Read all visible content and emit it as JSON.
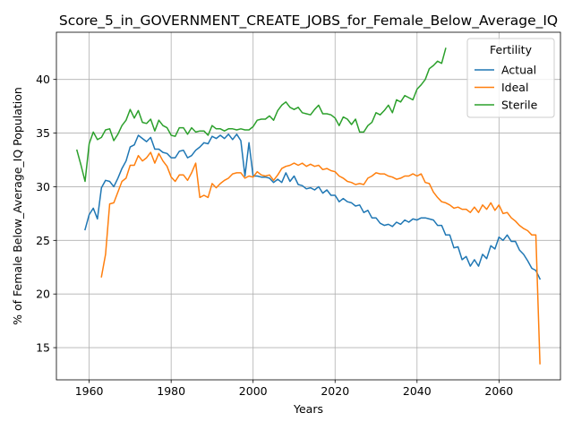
{
  "chart_data": {
    "type": "line",
    "title": "Score_5_in_GOVERNMENT_CREATE_JOBS_for_Female_Below_Average_IQ",
    "xlabel": "Years",
    "ylabel": "% of Female Below_Average_IQ Population",
    "xlim": [
      1952,
      2075
    ],
    "ylim": [
      12,
      44.4
    ],
    "xticks": [
      1960,
      1980,
      2000,
      2020,
      2040,
      2060
    ],
    "yticks": [
      15,
      20,
      25,
      30,
      35,
      40
    ],
    "grid": true,
    "legend": {
      "title": "Fertility",
      "position": "top-right"
    },
    "series": [
      {
        "name": "Actual",
        "color": "#1f77b4",
        "points": [
          [
            1959,
            26.0
          ],
          [
            1960,
            27.4
          ],
          [
            1961,
            28.0
          ],
          [
            1962,
            27.0
          ],
          [
            1963,
            29.9
          ],
          [
            1964,
            30.6
          ],
          [
            1965,
            30.5
          ],
          [
            1966,
            30.0
          ],
          [
            1967,
            30.8
          ],
          [
            1968,
            31.7
          ],
          [
            1969,
            32.4
          ],
          [
            1970,
            33.7
          ],
          [
            1971,
            33.9
          ],
          [
            1972,
            34.8
          ],
          [
            1973,
            34.5
          ],
          [
            1974,
            34.2
          ],
          [
            1975,
            34.6
          ],
          [
            1976,
            33.5
          ],
          [
            1977,
            33.5
          ],
          [
            1978,
            33.2
          ],
          [
            1979,
            33.1
          ],
          [
            1980,
            32.7
          ],
          [
            1981,
            32.7
          ],
          [
            1982,
            33.3
          ],
          [
            1983,
            33.4
          ],
          [
            1984,
            32.7
          ],
          [
            1985,
            32.9
          ],
          [
            1986,
            33.4
          ],
          [
            1987,
            33.7
          ],
          [
            1988,
            34.1
          ],
          [
            1989,
            34.0
          ],
          [
            1990,
            34.7
          ],
          [
            1991,
            34.5
          ],
          [
            1992,
            34.8
          ],
          [
            1993,
            34.5
          ],
          [
            1994,
            34.9
          ],
          [
            1995,
            34.4
          ],
          [
            1996,
            34.9
          ],
          [
            1997,
            34.3
          ],
          [
            1998,
            31.0
          ],
          [
            1999,
            34.1
          ],
          [
            2000,
            31.0
          ],
          [
            2001,
            31.0
          ],
          [
            2002,
            30.9
          ],
          [
            2003,
            30.9
          ],
          [
            2004,
            30.8
          ],
          [
            2005,
            30.4
          ],
          [
            2006,
            30.7
          ],
          [
            2007,
            30.4
          ],
          [
            2008,
            31.3
          ],
          [
            2009,
            30.5
          ],
          [
            2010,
            31.0
          ],
          [
            2011,
            30.2
          ],
          [
            2012,
            30.1
          ],
          [
            2013,
            29.8
          ],
          [
            2014,
            29.9
          ],
          [
            2015,
            29.7
          ],
          [
            2016,
            30.0
          ],
          [
            2017,
            29.4
          ],
          [
            2018,
            29.7
          ],
          [
            2019,
            29.2
          ],
          [
            2020,
            29.2
          ],
          [
            2021,
            28.6
          ],
          [
            2022,
            28.9
          ],
          [
            2023,
            28.6
          ],
          [
            2024,
            28.5
          ],
          [
            2025,
            28.2
          ],
          [
            2026,
            28.3
          ],
          [
            2027,
            27.6
          ],
          [
            2028,
            27.8
          ],
          [
            2029,
            27.1
          ],
          [
            2030,
            27.1
          ],
          [
            2031,
            26.6
          ],
          [
            2032,
            26.4
          ],
          [
            2033,
            26.5
          ],
          [
            2034,
            26.3
          ],
          [
            2035,
            26.7
          ],
          [
            2036,
            26.5
          ],
          [
            2037,
            26.9
          ],
          [
            2038,
            26.7
          ],
          [
            2039,
            27.0
          ],
          [
            2040,
            26.9
          ],
          [
            2041,
            27.1
          ],
          [
            2042,
            27.1
          ],
          [
            2043,
            27.0
          ],
          [
            2044,
            26.9
          ],
          [
            2045,
            26.4
          ],
          [
            2046,
            26.4
          ],
          [
            2047,
            25.5
          ],
          [
            2048,
            25.5
          ],
          [
            2049,
            24.3
          ],
          [
            2050,
            24.4
          ],
          [
            2051,
            23.2
          ],
          [
            2052,
            23.5
          ],
          [
            2053,
            22.6
          ],
          [
            2054,
            23.2
          ],
          [
            2055,
            22.6
          ],
          [
            2056,
            23.7
          ],
          [
            2057,
            23.3
          ],
          [
            2058,
            24.5
          ],
          [
            2059,
            24.2
          ],
          [
            2060,
            25.3
          ],
          [
            2061,
            25.0
          ],
          [
            2062,
            25.5
          ],
          [
            2063,
            24.9
          ],
          [
            2064,
            24.9
          ],
          [
            2065,
            24.1
          ],
          [
            2066,
            23.7
          ],
          [
            2067,
            23.1
          ],
          [
            2068,
            22.4
          ],
          [
            2069,
            22.2
          ],
          [
            2070,
            21.4
          ]
        ]
      },
      {
        "name": "Ideal",
        "color": "#ff7f0e",
        "points": [
          [
            1963,
            21.6
          ],
          [
            1964,
            23.7
          ],
          [
            1965,
            28.4
          ],
          [
            1966,
            28.5
          ],
          [
            1967,
            29.5
          ],
          [
            1968,
            30.5
          ],
          [
            1969,
            30.8
          ],
          [
            1970,
            32.0
          ],
          [
            1971,
            32.0
          ],
          [
            1972,
            32.9
          ],
          [
            1973,
            32.4
          ],
          [
            1974,
            32.7
          ],
          [
            1975,
            33.2
          ],
          [
            1976,
            32.2
          ],
          [
            1977,
            33.1
          ],
          [
            1978,
            32.4
          ],
          [
            1979,
            31.9
          ],
          [
            1980,
            30.9
          ],
          [
            1981,
            30.5
          ],
          [
            1982,
            31.1
          ],
          [
            1983,
            31.1
          ],
          [
            1984,
            30.6
          ],
          [
            1985,
            31.3
          ],
          [
            1986,
            32.2
          ],
          [
            1987,
            29.0
          ],
          [
            1988,
            29.2
          ],
          [
            1989,
            29.0
          ],
          [
            1990,
            30.3
          ],
          [
            1991,
            29.9
          ],
          [
            1992,
            30.3
          ],
          [
            1993,
            30.6
          ],
          [
            1994,
            30.8
          ],
          [
            1995,
            31.2
          ],
          [
            1996,
            31.3
          ],
          [
            1997,
            31.3
          ],
          [
            1998,
            30.8
          ],
          [
            1999,
            31.0
          ],
          [
            2000,
            30.9
          ],
          [
            2001,
            31.4
          ],
          [
            2002,
            31.1
          ],
          [
            2003,
            31.0
          ],
          [
            2004,
            31.1
          ],
          [
            2005,
            30.6
          ],
          [
            2006,
            31.1
          ],
          [
            2007,
            31.7
          ],
          [
            2008,
            31.9
          ],
          [
            2009,
            32.0
          ],
          [
            2010,
            32.2
          ],
          [
            2011,
            32.0
          ],
          [
            2012,
            32.2
          ],
          [
            2013,
            31.9
          ],
          [
            2014,
            32.1
          ],
          [
            2015,
            31.9
          ],
          [
            2016,
            32.0
          ],
          [
            2017,
            31.6
          ],
          [
            2018,
            31.7
          ],
          [
            2019,
            31.5
          ],
          [
            2020,
            31.4
          ],
          [
            2021,
            31.0
          ],
          [
            2022,
            30.8
          ],
          [
            2023,
            30.5
          ],
          [
            2024,
            30.4
          ],
          [
            2025,
            30.2
          ],
          [
            2026,
            30.3
          ],
          [
            2027,
            30.2
          ],
          [
            2028,
            30.8
          ],
          [
            2029,
            31.0
          ],
          [
            2030,
            31.3
          ],
          [
            2031,
            31.2
          ],
          [
            2032,
            31.2
          ],
          [
            2033,
            31.0
          ],
          [
            2034,
            30.9
          ],
          [
            2035,
            30.7
          ],
          [
            2036,
            30.8
          ],
          [
            2037,
            31.0
          ],
          [
            2038,
            31.0
          ],
          [
            2039,
            31.2
          ],
          [
            2040,
            31.0
          ],
          [
            2041,
            31.2
          ],
          [
            2042,
            30.4
          ],
          [
            2043,
            30.3
          ],
          [
            2044,
            29.5
          ],
          [
            2045,
            29.0
          ],
          [
            2046,
            28.6
          ],
          [
            2047,
            28.5
          ],
          [
            2048,
            28.3
          ],
          [
            2049,
            28.0
          ],
          [
            2050,
            28.1
          ],
          [
            2051,
            27.9
          ],
          [
            2052,
            27.9
          ],
          [
            2053,
            27.6
          ],
          [
            2054,
            28.1
          ],
          [
            2055,
            27.6
          ],
          [
            2056,
            28.3
          ],
          [
            2057,
            27.9
          ],
          [
            2058,
            28.5
          ],
          [
            2059,
            27.8
          ],
          [
            2060,
            28.3
          ],
          [
            2061,
            27.5
          ],
          [
            2062,
            27.6
          ],
          [
            2063,
            27.1
          ],
          [
            2064,
            26.8
          ],
          [
            2065,
            26.4
          ],
          [
            2066,
            26.1
          ],
          [
            2067,
            25.9
          ],
          [
            2068,
            25.5
          ],
          [
            2069,
            25.5
          ],
          [
            2070,
            13.5
          ]
        ]
      },
      {
        "name": "Sterile",
        "color": "#2ca02c",
        "points": [
          [
            1957,
            33.4
          ],
          [
            1958,
            32.0
          ],
          [
            1959,
            30.5
          ],
          [
            1960,
            34.0
          ],
          [
            1961,
            35.1
          ],
          [
            1962,
            34.4
          ],
          [
            1963,
            34.6
          ],
          [
            1964,
            35.3
          ],
          [
            1965,
            35.4
          ],
          [
            1966,
            34.3
          ],
          [
            1967,
            34.9
          ],
          [
            1968,
            35.7
          ],
          [
            1969,
            36.2
          ],
          [
            1970,
            37.2
          ],
          [
            1971,
            36.4
          ],
          [
            1972,
            37.1
          ],
          [
            1973,
            36.0
          ],
          [
            1974,
            35.9
          ],
          [
            1975,
            36.3
          ],
          [
            1976,
            35.2
          ],
          [
            1977,
            36.2
          ],
          [
            1978,
            35.7
          ],
          [
            1979,
            35.5
          ],
          [
            1980,
            34.8
          ],
          [
            1981,
            34.7
          ],
          [
            1982,
            35.5
          ],
          [
            1983,
            35.5
          ],
          [
            1984,
            34.9
          ],
          [
            1985,
            35.5
          ],
          [
            1986,
            35.1
          ],
          [
            1987,
            35.2
          ],
          [
            1988,
            35.2
          ],
          [
            1989,
            34.8
          ],
          [
            1990,
            35.7
          ],
          [
            1991,
            35.4
          ],
          [
            1992,
            35.4
          ],
          [
            1993,
            35.2
          ],
          [
            1994,
            35.4
          ],
          [
            1995,
            35.4
          ],
          [
            1996,
            35.3
          ],
          [
            1997,
            35.4
          ],
          [
            1998,
            35.3
          ],
          [
            1999,
            35.3
          ],
          [
            2000,
            35.6
          ],
          [
            2001,
            36.2
          ],
          [
            2002,
            36.3
          ],
          [
            2003,
            36.3
          ],
          [
            2004,
            36.6
          ],
          [
            2005,
            36.2
          ],
          [
            2006,
            37.1
          ],
          [
            2007,
            37.6
          ],
          [
            2008,
            37.9
          ],
          [
            2009,
            37.4
          ],
          [
            2010,
            37.2
          ],
          [
            2011,
            37.4
          ],
          [
            2012,
            36.9
          ],
          [
            2013,
            36.8
          ],
          [
            2014,
            36.7
          ],
          [
            2015,
            37.2
          ],
          [
            2016,
            37.6
          ],
          [
            2017,
            36.8
          ],
          [
            2018,
            36.8
          ],
          [
            2019,
            36.7
          ],
          [
            2020,
            36.4
          ],
          [
            2021,
            35.7
          ],
          [
            2022,
            36.5
          ],
          [
            2023,
            36.3
          ],
          [
            2024,
            35.8
          ],
          [
            2025,
            36.3
          ],
          [
            2026,
            35.1
          ],
          [
            2027,
            35.1
          ],
          [
            2028,
            35.7
          ],
          [
            2029,
            36.0
          ],
          [
            2030,
            36.9
          ],
          [
            2031,
            36.7
          ],
          [
            2032,
            37.1
          ],
          [
            2033,
            37.6
          ],
          [
            2034,
            36.9
          ],
          [
            2035,
            38.1
          ],
          [
            2036,
            37.9
          ],
          [
            2037,
            38.5
          ],
          [
            2038,
            38.3
          ],
          [
            2039,
            38.1
          ],
          [
            2040,
            39.1
          ],
          [
            2041,
            39.5
          ],
          [
            2042,
            40.0
          ],
          [
            2043,
            41.0
          ],
          [
            2044,
            41.3
          ],
          [
            2045,
            41.7
          ],
          [
            2046,
            41.5
          ],
          [
            2047,
            42.9
          ]
        ]
      }
    ]
  }
}
